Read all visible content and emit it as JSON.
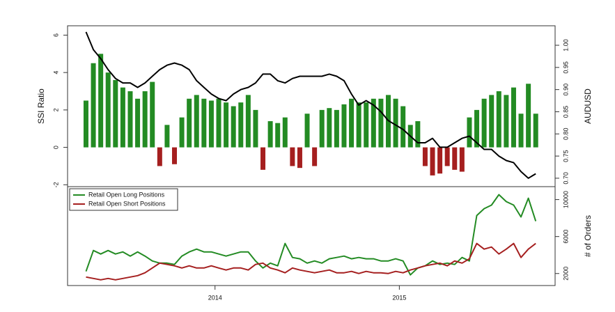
{
  "chart_data": [
    {
      "type": "bar",
      "ylabel": "SSI Ratio",
      "y2label": "AUDUSD",
      "xlim": [
        2013.2,
        2015.845
      ],
      "ylim": [
        -2.1,
        6.5
      ],
      "yticks": [
        -2,
        0,
        2,
        4,
        6
      ],
      "y2lim": [
        0.681,
        1.044
      ],
      "y2ticks": [
        {
          "value": 0.7,
          "label": "0.70"
        },
        {
          "value": 0.75,
          "label": "0.75"
        },
        {
          "value": 0.8,
          "label": "0.80"
        },
        {
          "value": 0.85,
          "label": "0.85"
        },
        {
          "value": 0.9,
          "label": "0.90"
        },
        {
          "value": 0.95,
          "label": "0.95"
        },
        {
          "value": 1.0,
          "label": "1.00"
        }
      ],
      "x": [
        2013.3,
        2013.34,
        2013.38,
        2013.42,
        2013.46,
        2013.5,
        2013.54,
        2013.58,
        2013.62,
        2013.66,
        2013.7,
        2013.74,
        2013.78,
        2013.82,
        2013.86,
        2013.9,
        2013.94,
        2013.98,
        2014.02,
        2014.06,
        2014.1,
        2014.14,
        2014.18,
        2014.22,
        2014.26,
        2014.3,
        2014.34,
        2014.38,
        2014.42,
        2014.46,
        2014.5,
        2014.54,
        2014.58,
        2014.62,
        2014.66,
        2014.7,
        2014.74,
        2014.78,
        2014.82,
        2014.86,
        2014.9,
        2014.94,
        2014.98,
        2015.02,
        2015.06,
        2015.1,
        2015.14,
        2015.18,
        2015.22,
        2015.26,
        2015.3,
        2015.34,
        2015.38,
        2015.42,
        2015.46,
        2015.5,
        2015.54,
        2015.58,
        2015.62,
        2015.66,
        2015.7,
        2015.74
      ],
      "series": [
        {
          "type": "bar",
          "color": "#238b23",
          "negative_color": "#a51f1f",
          "values": [
            2.5,
            4.5,
            5.0,
            4.0,
            3.6,
            3.2,
            3.0,
            2.6,
            3.0,
            3.5,
            -1.0,
            1.2,
            -0.9,
            1.6,
            2.6,
            2.8,
            2.6,
            2.5,
            2.6,
            2.4,
            2.2,
            2.4,
            2.8,
            2.0,
            -1.2,
            1.4,
            1.3,
            1.6,
            -1.0,
            -1.1,
            1.8,
            -1.0,
            2.0,
            2.1,
            2.0,
            2.3,
            2.6,
            2.4,
            2.4,
            2.6,
            2.6,
            2.8,
            2.6,
            2.2,
            1.2,
            1.4,
            -1.0,
            -1.5,
            -1.4,
            -1.0,
            -1.2,
            -1.3,
            1.6,
            2.0,
            2.6,
            2.8,
            3.0,
            2.8,
            3.2,
            1.8,
            3.4,
            1.8
          ]
        },
        {
          "type": "line",
          "axis": "y2",
          "color": "#000000",
          "values": [
            1.03,
            0.99,
            0.97,
            0.945,
            0.925,
            0.915,
            0.915,
            0.905,
            0.915,
            0.93,
            0.945,
            0.955,
            0.96,
            0.955,
            0.945,
            0.92,
            0.905,
            0.89,
            0.88,
            0.875,
            0.89,
            0.9,
            0.905,
            0.915,
            0.935,
            0.935,
            0.92,
            0.915,
            0.925,
            0.93,
            0.93,
            0.93,
            0.93,
            0.935,
            0.93,
            0.92,
            0.89,
            0.865,
            0.875,
            0.865,
            0.85,
            0.83,
            0.82,
            0.81,
            0.795,
            0.78,
            0.78,
            0.79,
            0.77,
            0.77,
            0.78,
            0.79,
            0.795,
            0.78,
            0.765,
            0.765,
            0.75,
            0.74,
            0.735,
            0.715,
            0.7,
            0.71
          ]
        }
      ]
    },
    {
      "type": "line",
      "y2label": "# of Orders",
      "xlim": [
        2013.2,
        2015.845
      ],
      "xticks": [
        2014,
        2015
      ],
      "y2lim": [
        700,
        11400
      ],
      "y2ticks": [
        2000,
        6000,
        10000
      ],
      "legend": "topleft",
      "x": [
        2013.3,
        2013.34,
        2013.38,
        2013.42,
        2013.46,
        2013.5,
        2013.54,
        2013.58,
        2013.62,
        2013.66,
        2013.7,
        2013.74,
        2013.78,
        2013.82,
        2013.86,
        2013.9,
        2013.94,
        2013.98,
        2014.02,
        2014.06,
        2014.1,
        2014.14,
        2014.18,
        2014.22,
        2014.26,
        2014.3,
        2014.34,
        2014.38,
        2014.42,
        2014.46,
        2014.5,
        2014.54,
        2014.58,
        2014.62,
        2014.66,
        2014.7,
        2014.74,
        2014.78,
        2014.82,
        2014.86,
        2014.9,
        2014.94,
        2014.98,
        2015.02,
        2015.06,
        2015.1,
        2015.14,
        2015.18,
        2015.22,
        2015.26,
        2015.3,
        2015.34,
        2015.38,
        2015.42,
        2015.46,
        2015.5,
        2015.54,
        2015.58,
        2015.62,
        2015.66,
        2015.7,
        2015.74
      ],
      "series": [
        {
          "name": "Retail Open Long Positions",
          "color": "#238b23",
          "axis": "y2",
          "values": [
            2230,
            4490,
            4110,
            4490,
            4110,
            4340,
            3890,
            4340,
            3890,
            3360,
            3130,
            3130,
            2980,
            3890,
            4340,
            4640,
            4340,
            4340,
            4110,
            3890,
            4110,
            4340,
            4340,
            3360,
            2600,
            3130,
            2830,
            5250,
            3740,
            3590,
            3130,
            3360,
            3130,
            3590,
            3740,
            3890,
            3590,
            3740,
            3590,
            3590,
            3360,
            3360,
            3590,
            3360,
            1850,
            2600,
            2830,
            3360,
            2980,
            3130,
            2980,
            3740,
            3360,
            8270,
            9020,
            9400,
            10530,
            9780,
            9400,
            8120,
            10150,
            7660
          ]
        },
        {
          "name": "Retail Open Short Positions",
          "color": "#a51f1f",
          "axis": "y2",
          "values": [
            1620,
            1470,
            1320,
            1470,
            1320,
            1470,
            1620,
            1770,
            2080,
            2600,
            3130,
            2980,
            2830,
            2600,
            2830,
            2600,
            2600,
            2830,
            2600,
            2380,
            2600,
            2600,
            2380,
            2980,
            3130,
            2600,
            2380,
            2080,
            2600,
            2380,
            2230,
            2080,
            2230,
            2380,
            2080,
            2080,
            2230,
            2000,
            2230,
            2080,
            2080,
            2000,
            2230,
            2080,
            2380,
            2600,
            2830,
            2980,
            3130,
            2830,
            3360,
            3130,
            3590,
            5250,
            4640,
            4870,
            4110,
            4640,
            5250,
            3740,
            4640,
            5250
          ]
        }
      ]
    }
  ]
}
